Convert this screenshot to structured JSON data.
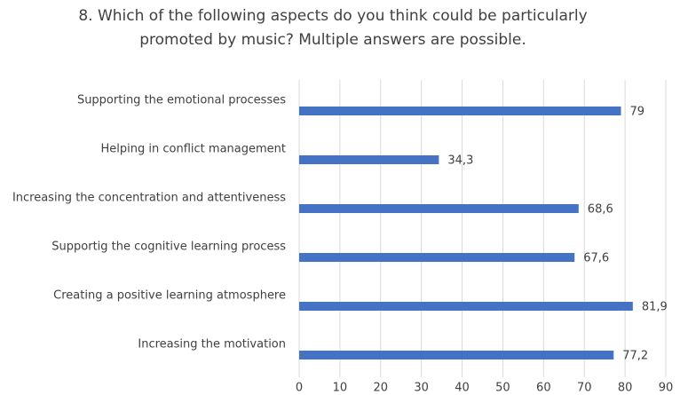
{
  "chart_data": {
    "type": "bar",
    "orientation": "horizontal",
    "title": [
      "8. Which of the following aspects do you think could be particularly",
      "promoted by music? Multiple answers are possible."
    ],
    "categories": [
      "Supporting the emotional processes",
      "Helping in conflict management",
      "Increasing the concentration and attentiveness",
      "Supportig the cognitive learning process",
      "Creating a positive learning atmosphere",
      "Increasing the motivation"
    ],
    "values": [
      79,
      34.3,
      68.6,
      67.6,
      81.9,
      77.2
    ],
    "value_labels": [
      "79",
      "34,3",
      "68,6",
      "67,6",
      "81,9",
      "77,2"
    ],
    "color": "#4472c4",
    "xlim": [
      0,
      90
    ],
    "xticks": [
      0,
      10,
      20,
      30,
      40,
      50,
      60,
      70,
      80,
      90
    ],
    "grid": true
  }
}
